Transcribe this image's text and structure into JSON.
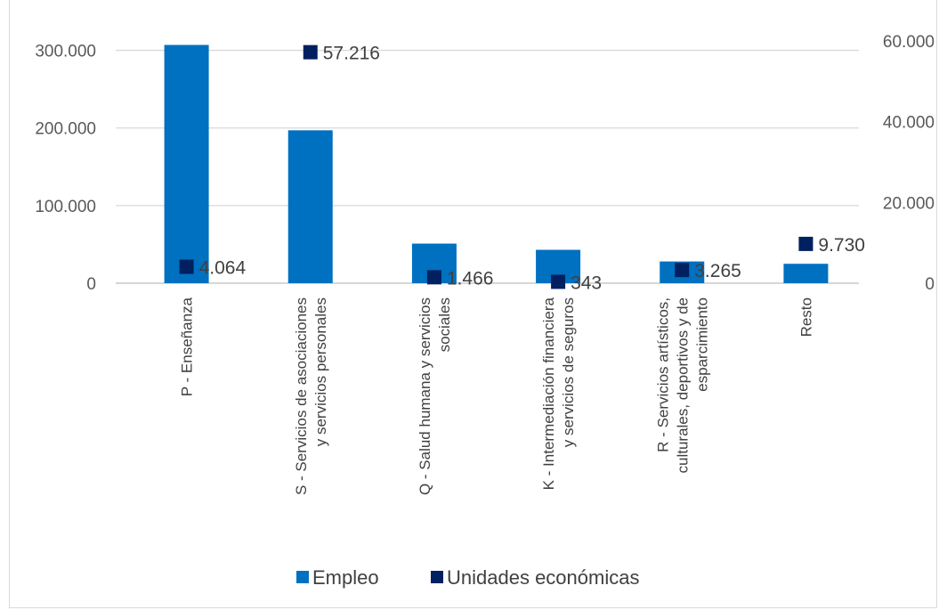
{
  "chart_data": {
    "type": "bar",
    "categories": [
      "P - Enseñanza",
      "S - Servicios de asociaciones y servicios personales",
      "Q - Salud humana y servicios sociales",
      "K - Intermediación financiera y servicios de seguros",
      "R - Servicios artísticos, culturales, deportivos y de esparcimiento",
      "Resto"
    ],
    "category_label_lines": [
      [
        "P - Enseñanza"
      ],
      [
        "S - Servicios de asociaciones",
        "y servicios personales"
      ],
      [
        "Q - Salud humana y servicios",
        "sociales"
      ],
      [
        "K - Intermediación financiera",
        "y servicios de seguros"
      ],
      [
        "R - Servicios artísticos,",
        "culturales, deportivos y de",
        "esparcimiento"
      ],
      [
        "Resto"
      ]
    ],
    "series": [
      {
        "name": "Empleo",
        "type": "bar",
        "axis": "left",
        "color": "#0070c0",
        "values": [
          307000,
          197000,
          51000,
          43000,
          28000,
          25000
        ]
      },
      {
        "name": "Unidades económicas",
        "type": "scatter",
        "axis": "right",
        "color": "#002060",
        "values": [
          4064,
          57216,
          1466,
          343,
          3265,
          9730
        ],
        "labels": [
          "4.064",
          "57.216",
          "1.466",
          "343",
          "3.265",
          "9.730"
        ]
      }
    ],
    "y_left": {
      "lim": [
        0,
        350000
      ],
      "ticks": [
        0,
        100000,
        200000,
        300000
      ],
      "tick_labels": [
        "0",
        "100.000",
        "200.000",
        "300.000"
      ]
    },
    "y_right": {
      "lim": [
        0,
        60000
      ],
      "ticks": [
        0,
        20000,
        40000,
        60000
      ],
      "tick_labels": [
        "0",
        "20.000",
        "40.000",
        "60.000"
      ]
    },
    "grid": true,
    "legend_position": "bottom",
    "xlabel": "",
    "ylabel": "",
    "title": ""
  }
}
